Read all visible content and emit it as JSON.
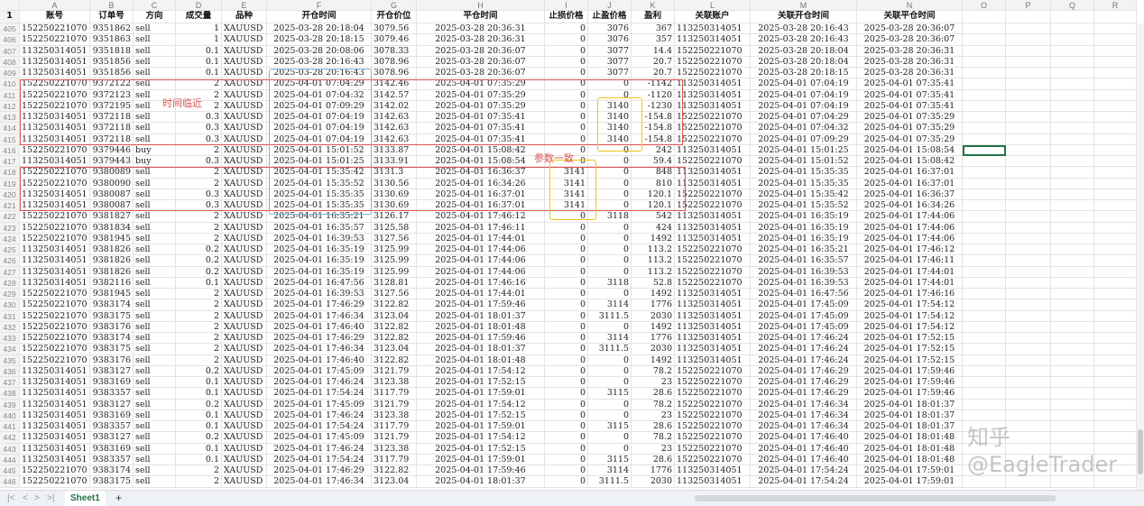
{
  "column_letters": [
    "A",
    "B",
    "C",
    "D",
    "E",
    "F",
    "G",
    "H",
    "I",
    "J",
    "K",
    "L",
    "M",
    "N",
    "O",
    "P",
    "Q",
    "R"
  ],
  "header_row_number": "1",
  "headers": [
    "账号",
    "订单号",
    "方向",
    "成交量",
    "品种",
    "开仓时间",
    "开仓价位",
    "平仓时间",
    "止损价格",
    "止盈价格",
    "盈利",
    "关联账户",
    "关联开仓时间",
    "关联平仓时间"
  ],
  "rows": [
    [
      "405",
      "152250221070",
      "9351862",
      "sell",
      "1",
      "XAUUSD",
      "2025-03-28 20:18:04",
      "3079.56",
      "2025-03-28 20:36:31",
      "0",
      "3076",
      "367",
      "113250314051",
      "2025-03-28 20:16:43",
      "2025-03-28 20:36:07"
    ],
    [
      "406",
      "152250221070",
      "9351863",
      "sell",
      "1",
      "XAUUSD",
      "2025-03-28 20:18:15",
      "3079.46",
      "2025-03-28 20:36:31",
      "0",
      "3076",
      "357",
      "113250314051",
      "2025-03-28 20:16:43",
      "2025-03-28 20:36:07"
    ],
    [
      "407",
      "113250314051",
      "9351818",
      "sell",
      "0.1",
      "XAUUSD",
      "2025-03-28 20:08:06",
      "3078.33",
      "2025-03-28 20:36:07",
      "0",
      "3077",
      "14.4",
      "152250221070",
      "2025-03-28 20:18:04",
      "2025-03-28 20:36:31"
    ],
    [
      "408",
      "113250314051",
      "9351856",
      "sell",
      "0.1",
      "XAUUSD",
      "2025-03-28 20:16:43",
      "3078.96",
      "2025-03-28 20:36:07",
      "0",
      "3077",
      "20.7",
      "152250221070",
      "2025-03-28 20:18:04",
      "2025-03-28 20:36:31"
    ],
    [
      "409",
      "113250314051",
      "9351856",
      "sell",
      "0.1",
      "XAUUSD",
      "2025-03-28 20:16:43",
      "3078.96",
      "2025-03-28 20:36:07",
      "0",
      "3077",
      "20.7",
      "152250221070",
      "2025-03-28 20:18:15",
      "2025-03-28 20:36:31"
    ],
    [
      "410",
      "152250221070",
      "9372122",
      "sell",
      "2",
      "XAUUSD",
      "2025-04-01 07:04:29",
      "3142.46",
      "2025-04-01 07:35:29",
      "0",
      "0",
      "-1142",
      "113250314051",
      "2025-04-01 07:04:19",
      "2025-04-01 07:35:41"
    ],
    [
      "411",
      "152250221070",
      "9372123",
      "sell",
      "2",
      "XAUUSD",
      "2025-04-01 07:04:32",
      "3142.57",
      "2025-04-01 07:35:29",
      "0",
      "0",
      "-1120",
      "113250314051",
      "2025-04-01 07:04:19",
      "2025-04-01 07:35:41"
    ],
    [
      "412",
      "152250221070",
      "9372195",
      "sell",
      "2",
      "XAUUSD",
      "2025-04-01 07:09:29",
      "3142.02",
      "2025-04-01 07:35:29",
      "0",
      "3140",
      "-1230",
      "113250314051",
      "2025-04-01 07:04:19",
      "2025-04-01 07:35:41"
    ],
    [
      "413",
      "113250314051",
      "9372118",
      "sell",
      "0.3",
      "XAUUSD",
      "2025-04-01 07:04:19",
      "3142.63",
      "2025-04-01 07:35:41",
      "0",
      "3140",
      "-154.8",
      "152250221070",
      "2025-04-01 07:04:29",
      "2025-04-01 07:35:29"
    ],
    [
      "414",
      "113250314051",
      "9372118",
      "sell",
      "0.3",
      "XAUUSD",
      "2025-04-01 07:04:19",
      "3142.63",
      "2025-04-01 07:35:41",
      "0",
      "3140",
      "-154.8",
      "152250221070",
      "2025-04-01 07:04:32",
      "2025-04-01 07:35:29"
    ],
    [
      "415",
      "113250314051",
      "9372118",
      "sell",
      "0.3",
      "XAUUSD",
      "2025-04-01 07:04:19",
      "3142.63",
      "2025-04-01 07:35:41",
      "0",
      "3140",
      "-154.8",
      "152250221070",
      "2025-04-01 07:09:29",
      "2025-04-01 07:35:29"
    ],
    [
      "416",
      "152250221070",
      "9379446",
      "buy",
      "2",
      "XAUUSD",
      "2025-04-01 15:01:52",
      "3133.87",
      "2025-04-01 15:08:42",
      "0",
      "0",
      "242",
      "113250314051",
      "2025-04-01 15:01:25",
      "2025-04-01 15:08:54"
    ],
    [
      "417",
      "113250314051",
      "9379443",
      "buy",
      "0.3",
      "XAUUSD",
      "2025-04-01 15:01:25",
      "3133.91",
      "2025-04-01 15:08:54",
      "0",
      "0",
      "59.4",
      "152250221070",
      "2025-04-01 15:01:52",
      "2025-04-01 15:08:42"
    ],
    [
      "418",
      "152250221070",
      "9380089",
      "sell",
      "2",
      "XAUUSD",
      "2025-04-01 15:35:42",
      "3131.3",
      "2025-04-01 16:36:37",
      "3141",
      "0",
      "848",
      "113250314051",
      "2025-04-01 15:35:35",
      "2025-04-01 16:37:01"
    ],
    [
      "419",
      "152250221070",
      "9380090",
      "sell",
      "2",
      "XAUUSD",
      "2025-04-01 15:35:52",
      "3130.56",
      "2025-04-01 16:34:26",
      "3141",
      "0",
      "810",
      "113250314051",
      "2025-04-01 15:35:35",
      "2025-04-01 16:37:01"
    ],
    [
      "420",
      "113250314051",
      "9380087",
      "sell",
      "0.3",
      "XAUUSD",
      "2025-04-01 15:35:35",
      "3130.69",
      "2025-04-01 16:37:01",
      "3141",
      "0",
      "120.1",
      "152250221070",
      "2025-04-01 15:35:42",
      "2025-04-01 16:36:37"
    ],
    [
      "421",
      "113250314051",
      "9380087",
      "sell",
      "0.3",
      "XAUUSD",
      "2025-04-01 15:35:35",
      "3130.69",
      "2025-04-01 16:37:01",
      "3141",
      "0",
      "120.1",
      "152250221070",
      "2025-04-01 15:35:52",
      "2025-04-01 16:34:26"
    ],
    [
      "422",
      "152250221070",
      "9381827",
      "sell",
      "2",
      "XAUUSD",
      "2025-04-01 16:35:21",
      "3126.17",
      "2025-04-01 17:46:12",
      "0",
      "3118",
      "542",
      "113250314051",
      "2025-04-01 16:35:19",
      "2025-04-01 17:44:06"
    ],
    [
      "423",
      "152250221070",
      "9381834",
      "sell",
      "2",
      "XAUUSD",
      "2025-04-01 16:35:57",
      "3125.58",
      "2025-04-01 17:46:11",
      "0",
      "0",
      "424",
      "113250314051",
      "2025-04-01 16:35:19",
      "2025-04-01 17:44:06"
    ],
    [
      "424",
      "152250221070",
      "9381945",
      "sell",
      "2",
      "XAUUSD",
      "2025-04-01 16:39:53",
      "3127.56",
      "2025-04-01 17:44:01",
      "0",
      "0",
      "1492",
      "113250314051",
      "2025-04-01 16:35:19",
      "2025-04-01 17:44:06"
    ],
    [
      "425",
      "113250314051",
      "9381826",
      "sell",
      "0.2",
      "XAUUSD",
      "2025-04-01 16:35:19",
      "3125.99",
      "2025-04-01 17:44:06",
      "0",
      "0",
      "113.2",
      "152250221070",
      "2025-04-01 16:35:21",
      "2025-04-01 17:46:12"
    ],
    [
      "426",
      "113250314051",
      "9381826",
      "sell",
      "0.2",
      "XAUUSD",
      "2025-04-01 16:35:19",
      "3125.99",
      "2025-04-01 17:44:06",
      "0",
      "0",
      "113.2",
      "152250221070",
      "2025-04-01 16:35:57",
      "2025-04-01 17:46:11"
    ],
    [
      "427",
      "113250314051",
      "9381826",
      "sell",
      "0.2",
      "XAUUSD",
      "2025-04-01 16:35:19",
      "3125.99",
      "2025-04-01 17:44:06",
      "0",
      "0",
      "113.2",
      "152250221070",
      "2025-04-01 16:39:53",
      "2025-04-01 17:44:01"
    ],
    [
      "428",
      "113250314051",
      "9382116",
      "sell",
      "0.1",
      "XAUUSD",
      "2025-04-01 16:47:56",
      "3128.81",
      "2025-04-01 17:46:16",
      "0",
      "3118",
      "52.8",
      "152250221070",
      "2025-04-01 16:39:53",
      "2025-04-01 17:44:01"
    ],
    [
      "429",
      "152250221070",
      "9381945",
      "sell",
      "2",
      "XAUUSD",
      "2025-04-01 16:39:53",
      "3127.56",
      "2025-04-01 17:44:01",
      "0",
      "0",
      "1492",
      "113250314051",
      "2025-04-01 16:47:56",
      "2025-04-01 17:46:16"
    ],
    [
      "430",
      "152250221070",
      "9383174",
      "sell",
      "2",
      "XAUUSD",
      "2025-04-01 17:46:29",
      "3122.82",
      "2025-04-01 17:59:46",
      "0",
      "3114",
      "1776",
      "113250314051",
      "2025-04-01 17:45:09",
      "2025-04-01 17:54:12"
    ],
    [
      "431",
      "152250221070",
      "9383175",
      "sell",
      "2",
      "XAUUSD",
      "2025-04-01 17:46:34",
      "3123.04",
      "2025-04-01 18:01:37",
      "0",
      "3111.5",
      "2030",
      "113250314051",
      "2025-04-01 17:45:09",
      "2025-04-01 17:54:12"
    ],
    [
      "432",
      "152250221070",
      "9383176",
      "sell",
      "2",
      "XAUUSD",
      "2025-04-01 17:46:40",
      "3122.82",
      "2025-04-01 18:01:48",
      "0",
      "0",
      "1492",
      "113250314051",
      "2025-04-01 17:45:09",
      "2025-04-01 17:54:12"
    ],
    [
      "433",
      "152250221070",
      "9383174",
      "sell",
      "2",
      "XAUUSD",
      "2025-04-01 17:46:29",
      "3122.82",
      "2025-04-01 17:59:46",
      "0",
      "3114",
      "1776",
      "113250314051",
      "2025-04-01 17:46:24",
      "2025-04-01 17:52:15"
    ],
    [
      "434",
      "152250221070",
      "9383175",
      "sell",
      "2",
      "XAUUSD",
      "2025-04-01 17:46:34",
      "3123.04",
      "2025-04-01 18:01:37",
      "0",
      "3111.5",
      "2030",
      "113250314051",
      "2025-04-01 17:46:24",
      "2025-04-01 17:52:15"
    ],
    [
      "435",
      "152250221070",
      "9383176",
      "sell",
      "2",
      "XAUUSD",
      "2025-04-01 17:46:40",
      "3122.82",
      "2025-04-01 18:01:48",
      "0",
      "0",
      "1492",
      "113250314051",
      "2025-04-01 17:46:24",
      "2025-04-01 17:52:15"
    ],
    [
      "436",
      "113250314051",
      "9383127",
      "sell",
      "0.2",
      "XAUUSD",
      "2025-04-01 17:45:09",
      "3121.79",
      "2025-04-01 17:54:12",
      "0",
      "0",
      "78.2",
      "152250221070",
      "2025-04-01 17:46:29",
      "2025-04-01 17:59:46"
    ],
    [
      "437",
      "113250314051",
      "9383169",
      "sell",
      "0.1",
      "XAUUSD",
      "2025-04-01 17:46:24",
      "3123.38",
      "2025-04-01 17:52:15",
      "0",
      "0",
      "23",
      "152250221070",
      "2025-04-01 17:46:29",
      "2025-04-01 17:59:46"
    ],
    [
      "438",
      "113250314051",
      "9383357",
      "sell",
      "0.1",
      "XAUUSD",
      "2025-04-01 17:54:24",
      "3117.79",
      "2025-04-01 17:59:01",
      "0",
      "3115",
      "28.6",
      "152250221070",
      "2025-04-01 17:46:29",
      "2025-04-01 17:59:46"
    ],
    [
      "439",
      "113250314051",
      "9383127",
      "sell",
      "0.2",
      "XAUUSD",
      "2025-04-01 17:45:09",
      "3121.79",
      "2025-04-01 17:54:12",
      "0",
      "0",
      "78.2",
      "152250221070",
      "2025-04-01 17:46:34",
      "2025-04-01 18:01:37"
    ],
    [
      "440",
      "113250314051",
      "9383169",
      "sell",
      "0.1",
      "XAUUSD",
      "2025-04-01 17:46:24",
      "3123.38",
      "2025-04-01 17:52:15",
      "0",
      "0",
      "23",
      "152250221070",
      "2025-04-01 17:46:34",
      "2025-04-01 18:01:37"
    ],
    [
      "441",
      "113250314051",
      "9383357",
      "sell",
      "0.1",
      "XAUUSD",
      "2025-04-01 17:54:24",
      "3117.79",
      "2025-04-01 17:59:01",
      "0",
      "3115",
      "28.6",
      "152250221070",
      "2025-04-01 17:46:34",
      "2025-04-01 18:01:37"
    ],
    [
      "442",
      "113250314051",
      "9383127",
      "sell",
      "0.2",
      "XAUUSD",
      "2025-04-01 17:45:09",
      "3121.79",
      "2025-04-01 17:54:12",
      "0",
      "0",
      "78.2",
      "152250221070",
      "2025-04-01 17:46:40",
      "2025-04-01 18:01:48"
    ],
    [
      "443",
      "113250314051",
      "9383169",
      "sell",
      "0.1",
      "XAUUSD",
      "2025-04-01 17:46:24",
      "3123.38",
      "2025-04-01 17:52:15",
      "0",
      "0",
      "23",
      "152250221070",
      "2025-04-01 17:46:40",
      "2025-04-01 18:01:48"
    ],
    [
      "444",
      "113250314051",
      "9383357",
      "sell",
      "0.1",
      "XAUUSD",
      "2025-04-01 17:54:24",
      "3117.79",
      "2025-04-01 17:59:01",
      "0",
      "3115",
      "28.6",
      "152250221070",
      "2025-04-01 17:46:40",
      "2025-04-01 18:01:48"
    ],
    [
      "445",
      "152250221070",
      "9383174",
      "sell",
      "2",
      "XAUUSD",
      "2025-04-01 17:46:29",
      "3122.82",
      "2025-04-01 17:59:46",
      "0",
      "3114",
      "1776",
      "113250314051",
      "2025-04-01 17:54:24",
      "2025-04-01 17:59:01"
    ],
    [
      "446",
      "152250221070",
      "9383175",
      "sell",
      "2",
      "XAUUSD",
      "2025-04-01 17:46:34",
      "3123.04",
      "2025-04-01 18:01:37",
      "0",
      "3111.5",
      "2030",
      "113250314051",
      "2025-04-01 17:54:24",
      "2025-04-01 17:59:01"
    ]
  ],
  "annotations": {
    "time_close": "时间临近",
    "params_match": "参数一致",
    "red": "#d9534f",
    "blue": "#7fb3d5",
    "yellow": "#f0c419"
  },
  "tabs": {
    "sheet": "Sheet1",
    "add": "+",
    "first": "|<",
    "prev": "<",
    "next": ">",
    "last": ">|"
  },
  "watermark": "知乎 @EagleTrader",
  "accent": "#217346"
}
